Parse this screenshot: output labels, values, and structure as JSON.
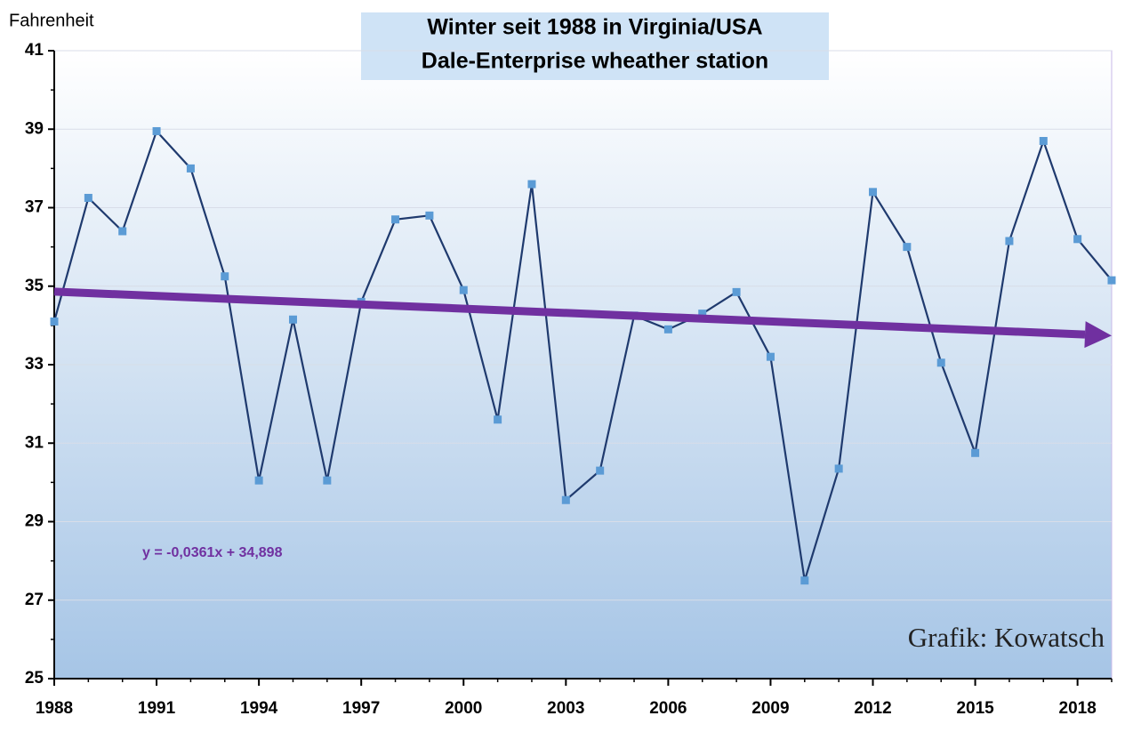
{
  "chart_data": {
    "type": "line",
    "title": [
      "Winter seit 1988 in Virginia/USA",
      "Dale-Enterprise wheather station"
    ],
    "y_label": "Fahrenheit",
    "annotations": [
      "y = -0,0361x + 34,898",
      "Grafik: Kowatsch"
    ],
    "x": [
      1988,
      1989,
      1990,
      1991,
      1992,
      1993,
      1994,
      1995,
      1996,
      1997,
      1998,
      1999,
      2000,
      2001,
      2002,
      2003,
      2004,
      2005,
      2006,
      2007,
      2008,
      2009,
      2010,
      2011,
      2012,
      2013,
      2014,
      2015,
      2016,
      2017,
      2018,
      2019
    ],
    "series": [
      {
        "color": "#1f3a6e",
        "marker_color": "#5b9bd5",
        "values": [
          34.1,
          37.25,
          36.4,
          38.95,
          38.0,
          35.25,
          30.05,
          34.15,
          30.05,
          34.6,
          36.7,
          36.8,
          34.9,
          31.6,
          37.6,
          29.55,
          30.3,
          34.25,
          33.9,
          34.3,
          34.85,
          33.2,
          27.5,
          30.35,
          37.4,
          36.0,
          33.05,
          30.75,
          36.15,
          38.7,
          36.2,
          35.15
        ]
      }
    ],
    "trend": {
      "color": "#7030a0",
      "x": [
        1988,
        2019
      ],
      "values": [
        34.86,
        33.74
      ]
    },
    "xlim": [
      1988,
      2019
    ],
    "xticks": [
      1988,
      1991,
      1994,
      1997,
      2000,
      2003,
      2006,
      2009,
      2012,
      2015,
      2018
    ],
    "ylim": [
      25,
      41
    ],
    "yticks": [
      25,
      27,
      29,
      31,
      33,
      35,
      37,
      39,
      41
    ],
    "grid": true
  }
}
